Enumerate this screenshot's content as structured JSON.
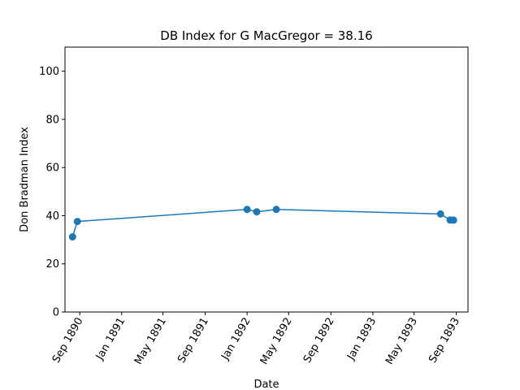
{
  "chart_data": {
    "type": "line",
    "title": "DB Index for G MacGregor = 38.16",
    "xlabel": "Date",
    "ylabel": "Don Bradman Index",
    "ylim": [
      0,
      110
    ],
    "yticks": [
      0,
      20,
      40,
      60,
      80,
      100
    ],
    "xlim": [
      "1890-07-20",
      "1893-10-05"
    ],
    "xticks": [
      {
        "date": "1890-09-01",
        "label": "Sep 1890"
      },
      {
        "date": "1891-01-01",
        "label": "Jan 1891"
      },
      {
        "date": "1891-05-01",
        "label": "May 1891"
      },
      {
        "date": "1891-09-01",
        "label": "Sep 1891"
      },
      {
        "date": "1892-01-01",
        "label": "Jan 1892"
      },
      {
        "date": "1892-05-01",
        "label": "May 1892"
      },
      {
        "date": "1892-09-01",
        "label": "Sep 1892"
      },
      {
        "date": "1893-01-01",
        "label": "Jan 1893"
      },
      {
        "date": "1893-05-01",
        "label": "May 1893"
      },
      {
        "date": "1893-09-01",
        "label": "Sep 1893"
      }
    ],
    "grid": false,
    "series": [
      {
        "color": "#1f77b4",
        "marker": "circle",
        "points": [
          {
            "x": "1890-08-11",
            "y": 31.2
          },
          {
            "x": "1890-08-25",
            "y": 37.6
          },
          {
            "x": "1892-01-01",
            "y": 42.6
          },
          {
            "x": "1892-01-29",
            "y": 41.6
          },
          {
            "x": "1892-03-26",
            "y": 42.6
          },
          {
            "x": "1893-07-17",
            "y": 40.7
          },
          {
            "x": "1893-08-14",
            "y": 38.2
          },
          {
            "x": "1893-08-24",
            "y": 38.16
          }
        ]
      }
    ]
  }
}
